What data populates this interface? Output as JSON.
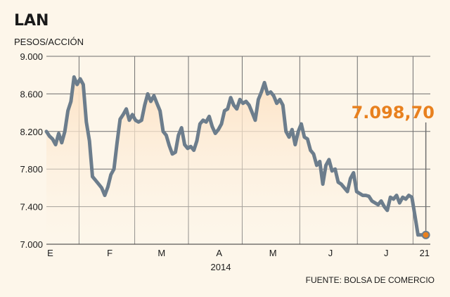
{
  "colors": {
    "background": "#fdf6ea",
    "line": "#6c7d8c",
    "area_top": "#fde2c4",
    "accent": "#e8801e",
    "grid": "#6f6f6f"
  },
  "chart_data": {
    "type": "area",
    "title": "LAN",
    "subtitle": "PESOS/ACCIÓN",
    "year_label": "2014",
    "source": "FUENTE: BOLSA DE COMERCIO",
    "callout": "7.098,70",
    "last_value": 7098.7,
    "ylim": [
      7000,
      9000
    ],
    "yticks": [
      7000,
      7400,
      7800,
      8200,
      8600,
      9000
    ],
    "ytick_labels": [
      "7.000",
      "7.400",
      "7.800",
      "8.200",
      "8.600",
      "9.000"
    ],
    "month_labels": [
      "E",
      "F",
      "M",
      "A",
      "M",
      "J",
      "J",
      "21"
    ],
    "x_range": [
      0,
      100
    ],
    "month_label_positions": [
      1.0,
      16.5,
      30.0,
      45.0,
      59.0,
      74.0,
      88.5,
      98.5
    ],
    "month_separators": [
      8.5,
      23.0,
      37.0,
      51.0,
      66.0,
      81.0,
      95.5
    ],
    "grid": true,
    "series": [
      {
        "x": [
          0,
          0.8,
          1.6,
          2.4,
          3.2,
          4.0,
          4.8,
          5.6,
          6.4,
          7.2,
          8.0,
          8.8,
          9.6,
          10.4,
          11.2,
          12.0,
          12.8,
          13.6,
          14.4,
          15.2,
          16.0,
          16.8,
          17.6,
          18.4,
          19.2,
          20.0,
          20.8,
          21.6,
          22.4,
          23.2,
          24.0,
          24.8,
          25.6,
          26.4,
          27.2,
          28.0,
          28.8,
          29.6,
          30.4,
          31.2,
          32.0,
          32.8,
          33.6,
          34.4,
          35.2,
          36.0,
          36.8,
          37.6,
          38.4,
          39.2,
          40.0,
          40.8,
          41.6,
          42.4,
          43.2,
          44.0,
          44.8,
          45.6,
          46.4,
          47.2,
          48.0,
          48.8,
          49.6,
          50.4,
          51.2,
          52.0,
          52.8,
          53.6,
          54.4,
          55.2,
          56.0,
          56.8,
          57.6,
          58.4,
          59.2,
          60.0,
          60.8,
          61.6,
          62.4,
          63.2,
          64.0,
          64.8,
          65.6,
          66.4,
          67.2,
          68.0,
          68.8,
          69.6,
          70.4,
          71.2,
          72.0,
          72.8,
          73.6,
          74.4,
          75.2,
          76.0,
          76.8,
          77.6,
          78.4,
          79.2,
          80.0,
          80.8,
          81.6,
          82.4,
          83.2,
          84.0,
          84.8,
          85.6,
          86.4,
          87.2,
          88.0,
          88.8,
          89.6,
          90.4,
          91.2,
          92.0,
          92.8,
          93.6,
          94.4,
          95.2,
          96.0,
          96.8,
          97.6,
          98.4,
          99.2
        ],
        "values": [
          8200,
          8150,
          8120,
          8060,
          8180,
          8080,
          8200,
          8420,
          8520,
          8780,
          8700,
          8760,
          8700,
          8300,
          8100,
          7720,
          7680,
          7640,
          7600,
          7520,
          7610,
          7740,
          7800,
          8080,
          8330,
          8380,
          8440,
          8320,
          8380,
          8320,
          8300,
          8320,
          8480,
          8600,
          8520,
          8580,
          8500,
          8420,
          8200,
          8160,
          8050,
          7960,
          7980,
          8160,
          8240,
          8060,
          8020,
          8040,
          8000,
          8100,
          8280,
          8320,
          8300,
          8360,
          8250,
          8180,
          8220,
          8280,
          8420,
          8440,
          8560,
          8480,
          8440,
          8540,
          8500,
          8520,
          8480,
          8400,
          8320,
          8540,
          8620,
          8720,
          8600,
          8620,
          8580,
          8500,
          8540,
          8480,
          8200,
          8140,
          8220,
          8060,
          8200,
          8280,
          8140,
          8120,
          8000,
          7960,
          7840,
          7880,
          7640,
          7840,
          7900,
          7780,
          7800,
          7660,
          7640,
          7600,
          7560,
          7700,
          7760,
          7560,
          7540,
          7520,
          7520,
          7510,
          7460,
          7440,
          7420,
          7460,
          7400,
          7360,
          7500,
          7480,
          7520,
          7440,
          7500,
          7480,
          7520,
          7500,
          7300,
          7098.7,
          7098.7,
          7098.7,
          7098.7
        ]
      }
    ]
  }
}
